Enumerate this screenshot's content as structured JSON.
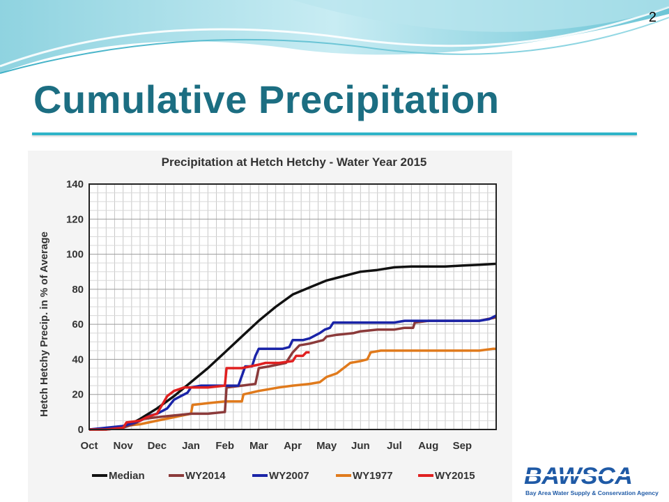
{
  "page_number": "2",
  "slide_title": "Cumulative Precipitation",
  "logo": {
    "name": "BAWSCA",
    "tagline": "Bay Area Water Supply & Conservation Agency"
  },
  "colors": {
    "title": "#1c6e82",
    "underline": "#2fb4c8",
    "logo": "#1f5aa6"
  },
  "chart_data": {
    "type": "line",
    "title": "Precipitation at Hetch Hetchy - Water Year 2015",
    "xlabel": "",
    "ylabel": "Hetch Hetchy Precip. in % of Average",
    "xlim": [
      0,
      12
    ],
    "ylim": [
      0,
      140
    ],
    "y_ticks": [
      0,
      20,
      40,
      60,
      80,
      100,
      120,
      140
    ],
    "x_ticks": [
      {
        "label": "Oct",
        "at": 0
      },
      {
        "label": "Nov",
        "at": 1
      },
      {
        "label": "Dec",
        "at": 2
      },
      {
        "label": "Jan",
        "at": 3
      },
      {
        "label": "Feb",
        "at": 4
      },
      {
        "label": "Mar",
        "at": 5
      },
      {
        "label": "Apr",
        "at": 6
      },
      {
        "label": "May",
        "at": 7
      },
      {
        "label": "Jun",
        "at": 8
      },
      {
        "label": "Jul",
        "at": 9
      },
      {
        "label": "Aug",
        "at": 10
      },
      {
        "label": "Sep",
        "at": 11
      }
    ],
    "grid": true,
    "legend_position": "bottom",
    "series": [
      {
        "name": "Median",
        "color": "#111111",
        "points": [
          [
            0,
            0
          ],
          [
            1,
            1
          ],
          [
            1.5,
            6
          ],
          [
            2,
            12
          ],
          [
            2.5,
            19
          ],
          [
            3,
            27
          ],
          [
            3.5,
            35
          ],
          [
            4,
            44
          ],
          [
            4.5,
            53
          ],
          [
            5,
            62
          ],
          [
            5.5,
            70
          ],
          [
            6,
            77
          ],
          [
            6.5,
            81
          ],
          [
            7,
            85
          ],
          [
            7.5,
            87.5
          ],
          [
            8,
            90
          ],
          [
            8.5,
            91
          ],
          [
            9,
            92.5
          ],
          [
            9.5,
            93
          ],
          [
            10,
            93
          ],
          [
            10.5,
            93
          ],
          [
            11,
            93.5
          ],
          [
            11.5,
            94
          ],
          [
            12,
            94.5
          ]
        ]
      },
      {
        "name": "WY2014",
        "color": "#8b3a3a",
        "points": [
          [
            0,
            0
          ],
          [
            0.5,
            0
          ],
          [
            1,
            1
          ],
          [
            1.3,
            3
          ],
          [
            1.6,
            6
          ],
          [
            2,
            7
          ],
          [
            2.5,
            8
          ],
          [
            3,
            9
          ],
          [
            3.5,
            9
          ],
          [
            4,
            10
          ],
          [
            4.05,
            24
          ],
          [
            4.5,
            25
          ],
          [
            4.9,
            26
          ],
          [
            5,
            35
          ],
          [
            5.3,
            36
          ],
          [
            5.8,
            38
          ],
          [
            6,
            44
          ],
          [
            6.2,
            48
          ],
          [
            6.5,
            49
          ],
          [
            6.9,
            51
          ],
          [
            7,
            53
          ],
          [
            7.3,
            54
          ],
          [
            7.8,
            55
          ],
          [
            8,
            56
          ],
          [
            8.5,
            57
          ],
          [
            9,
            57
          ],
          [
            9.3,
            58
          ],
          [
            9.55,
            58
          ],
          [
            9.6,
            61
          ],
          [
            10,
            62
          ],
          [
            10.5,
            62
          ],
          [
            11,
            62
          ],
          [
            11.5,
            62
          ],
          [
            12,
            64
          ]
        ]
      },
      {
        "name": "WY2007",
        "color": "#1a24a8",
        "points": [
          [
            0,
            0
          ],
          [
            0.5,
            1
          ],
          [
            1,
            2
          ],
          [
            1.5,
            5
          ],
          [
            1.8,
            8
          ],
          [
            2,
            9
          ],
          [
            2.3,
            12
          ],
          [
            2.5,
            17
          ],
          [
            2.7,
            19
          ],
          [
            2.9,
            21
          ],
          [
            3,
            24
          ],
          [
            3.3,
            25
          ],
          [
            3.6,
            25
          ],
          [
            4,
            25
          ],
          [
            4.4,
            25
          ],
          [
            4.6,
            36
          ],
          [
            4.8,
            36
          ],
          [
            4.9,
            42
          ],
          [
            5,
            46
          ],
          [
            5.3,
            46
          ],
          [
            5.7,
            46
          ],
          [
            5.9,
            47
          ],
          [
            6,
            51
          ],
          [
            6.3,
            51
          ],
          [
            6.5,
            52
          ],
          [
            6.8,
            55
          ],
          [
            6.95,
            57
          ],
          [
            7.1,
            58
          ],
          [
            7.2,
            61
          ],
          [
            7.6,
            61
          ],
          [
            8,
            61
          ],
          [
            8.5,
            61
          ],
          [
            9,
            61
          ],
          [
            9.3,
            62
          ],
          [
            9.6,
            62
          ],
          [
            10,
            62
          ],
          [
            10.5,
            62
          ],
          [
            11,
            62
          ],
          [
            11.5,
            62
          ],
          [
            11.8,
            63
          ],
          [
            12,
            65
          ]
        ]
      },
      {
        "name": "WY1977",
        "color": "#e07a1c",
        "points": [
          [
            0,
            0
          ],
          [
            0.4,
            0
          ],
          [
            1,
            2
          ],
          [
            1.5,
            3
          ],
          [
            2,
            5
          ],
          [
            2.5,
            7
          ],
          [
            3,
            9
          ],
          [
            3.05,
            14
          ],
          [
            3.5,
            15
          ],
          [
            4,
            16
          ],
          [
            4.5,
            16
          ],
          [
            4.55,
            20
          ],
          [
            5,
            22
          ],
          [
            5.3,
            23
          ],
          [
            5.6,
            24
          ],
          [
            6,
            25
          ],
          [
            6.5,
            26
          ],
          [
            6.8,
            27
          ],
          [
            7,
            30
          ],
          [
            7.3,
            32
          ],
          [
            7.5,
            35
          ],
          [
            7.7,
            38
          ],
          [
            8,
            39
          ],
          [
            8.2,
            40
          ],
          [
            8.3,
            44
          ],
          [
            8.6,
            45
          ],
          [
            9,
            45
          ],
          [
            9.5,
            45
          ],
          [
            10,
            45
          ],
          [
            10.5,
            45
          ],
          [
            11,
            45
          ],
          [
            11.5,
            45
          ],
          [
            11.9,
            46
          ],
          [
            12,
            46
          ]
        ]
      },
      {
        "name": "WY2015",
        "color": "#e02020",
        "points": [
          [
            0,
            0
          ],
          [
            0.5,
            0
          ],
          [
            1,
            1
          ],
          [
            1.1,
            4
          ],
          [
            1.5,
            5
          ],
          [
            1.7,
            7
          ],
          [
            2,
            9
          ],
          [
            2.15,
            14
          ],
          [
            2.3,
            19
          ],
          [
            2.5,
            22
          ],
          [
            2.8,
            24
          ],
          [
            3,
            24
          ],
          [
            3.5,
            24
          ],
          [
            4,
            25
          ],
          [
            4.05,
            35
          ],
          [
            4.5,
            35
          ],
          [
            5,
            37
          ],
          [
            5.2,
            38
          ],
          [
            5.6,
            38
          ],
          [
            6,
            39
          ],
          [
            6.1,
            42
          ],
          [
            6.3,
            42
          ],
          [
            6.4,
            44
          ],
          [
            6.5,
            44
          ]
        ]
      }
    ]
  }
}
